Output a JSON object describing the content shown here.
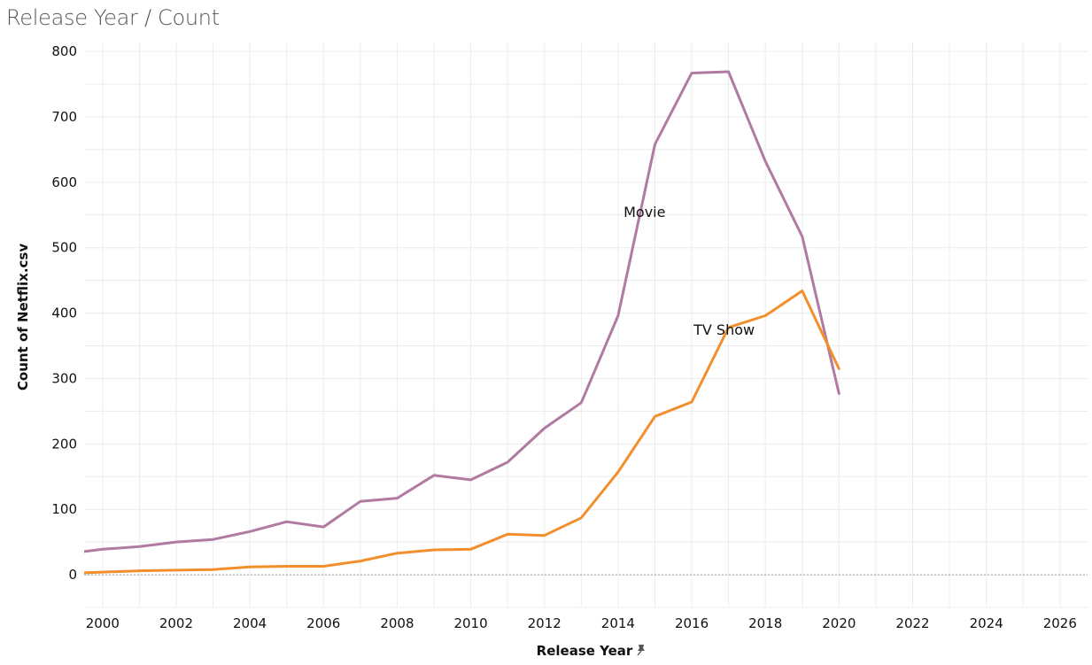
{
  "chart_data": {
    "type": "line",
    "title": "Release Year / Count",
    "xlabel": "Release Year",
    "ylabel": "Count of Netflix.csv",
    "xlim": [
      1999.5,
      2026.75
    ],
    "ylim": [
      -50,
      815
    ],
    "x_ticks": [
      2000,
      2002,
      2004,
      2006,
      2008,
      2010,
      2012,
      2014,
      2016,
      2018,
      2020,
      2022,
      2024,
      2026
    ],
    "y_ticks": [
      0,
      100,
      200,
      300,
      400,
      500,
      600,
      700,
      800
    ],
    "grid": true,
    "x": [
      1999,
      2000,
      2001,
      2002,
      2003,
      2004,
      2005,
      2006,
      2007,
      2008,
      2009,
      2010,
      2011,
      2012,
      2013,
      2014,
      2015,
      2016,
      2017,
      2018,
      2019,
      2020,
      2021
    ],
    "series": [
      {
        "name": "Movie",
        "color": "#b07aa1",
        "values": [
          32,
          39,
          43,
          50,
          54,
          66,
          81,
          73,
          112,
          117,
          152,
          145,
          172,
          224,
          263,
          396,
          658,
          767,
          769,
          632,
          517,
          277,
          null
        ]
      },
      {
        "name": "TV Show",
        "color": "#f28e2b",
        "values": [
          2,
          4,
          6,
          7,
          8,
          12,
          13,
          13,
          21,
          33,
          38,
          39,
          62,
          60,
          87,
          157,
          242,
          264,
          378,
          396,
          434,
          315,
          null
        ]
      }
    ],
    "pin_icon": "pin-icon"
  }
}
